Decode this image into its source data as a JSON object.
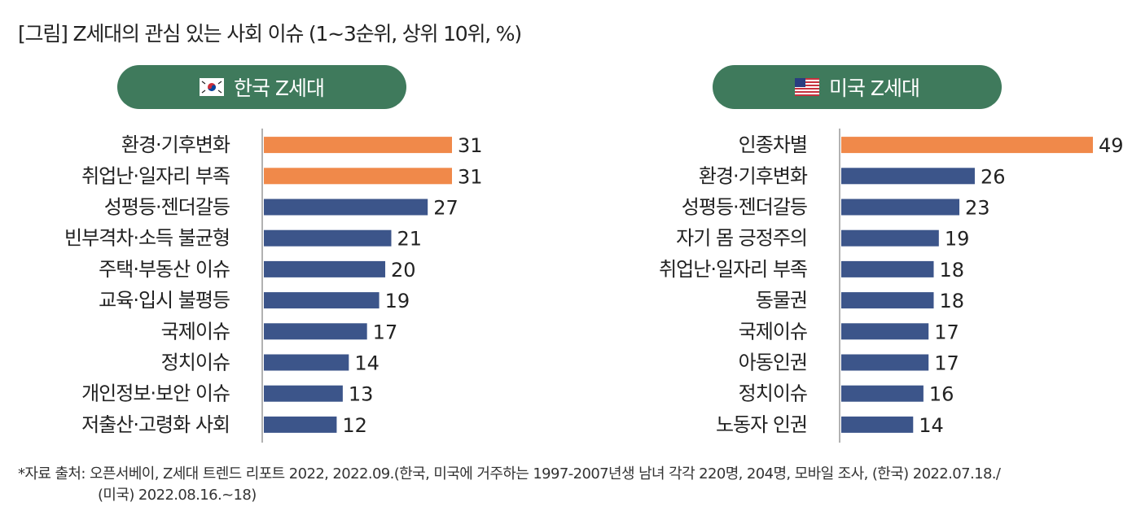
{
  "title": "[그림] Z세대의 관심 있는 사회 이슈 (1~3순위, 상위 10위, %)",
  "footnote": {
    "line1": "*자료 출처:  오픈서베이, Z세대 트렌드 리포트 2022, 2022.09.(한국, 미국에 거주하는 1997-2007년생 남녀 각각 220명, 204명, 모바일 조사, (한국) 2022.07.18./",
    "line2": "(미국) 2022.08.16.~18)"
  },
  "colors": {
    "highlight": "#f0894a",
    "bar": "#3c558a",
    "pill": "#3f7a5c",
    "axis": "#999999"
  },
  "chart_data": [
    {
      "type": "bar",
      "orientation": "horizontal",
      "title": "한국 Z세대",
      "flag": "korea-flag-icon",
      "categories": [
        "환경·기후변화",
        "취업난·일자리 부족",
        "성평등·젠더갈등",
        "빈부격차·소득 불균형",
        "주택·부동산 이슈",
        "교육·입시 불평등",
        "국제이슈",
        "정치이슈",
        "개인정보·보안 이슈",
        "저출산·고령화 사회"
      ],
      "values": [
        31,
        31,
        27,
        21,
        20,
        19,
        17,
        14,
        13,
        12
      ],
      "highlighted": [
        0,
        1
      ],
      "xlim": [
        0,
        31
      ]
    },
    {
      "type": "bar",
      "orientation": "horizontal",
      "title": "미국 Z세대",
      "flag": "us-flag-icon",
      "categories": [
        "인종차별",
        "환경·기후변화",
        "성평등·젠더갈등",
        "자기 몸 긍정주의",
        "취업난·일자리 부족",
        "동물권",
        "국제이슈",
        "아동인권",
        "정치이슈",
        "노동자 인권"
      ],
      "values": [
        49,
        26,
        23,
        19,
        18,
        18,
        17,
        17,
        16,
        14
      ],
      "highlighted": [
        0
      ],
      "xlim": [
        0,
        49
      ]
    }
  ]
}
